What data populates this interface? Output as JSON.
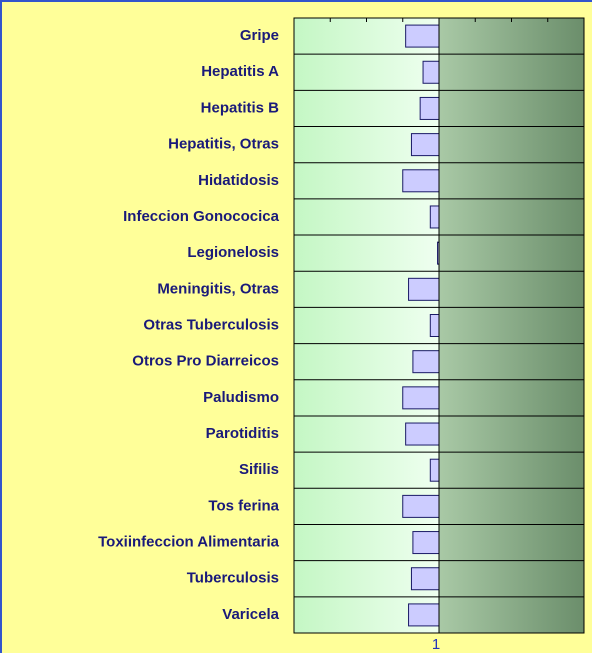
{
  "chart_data": {
    "type": "hbar",
    "categories": [
      "Gripe",
      "Hepatitis A",
      "Hepatitis B",
      "Hepatitis, Otras",
      "Hidatidosis",
      "Infeccion Gonococica",
      "Legionelosis",
      "Meningitis, Otras",
      "Otras Tuberculosis",
      "Otros Pro Diarreicos",
      "Paludismo",
      "Parotiditis",
      "Sifilis",
      "Tos ferina",
      "Toxiinfeccion Alimentaria",
      "Tuberculosis",
      "Varicela"
    ],
    "values": [
      0.77,
      0.89,
      0.87,
      0.81,
      0.75,
      0.94,
      0.99,
      0.79,
      0.94,
      0.82,
      0.75,
      0.77,
      0.94,
      0.75,
      0.82,
      0.81,
      0.79
    ],
    "baseline": 1,
    "color": "#ccccff",
    "xlim": [
      0,
      2
    ],
    "xticks": [
      1
    ],
    "minor_xticks": [
      0.25,
      0.5,
      0.75,
      1.25,
      1.5,
      1.75
    ]
  }
}
